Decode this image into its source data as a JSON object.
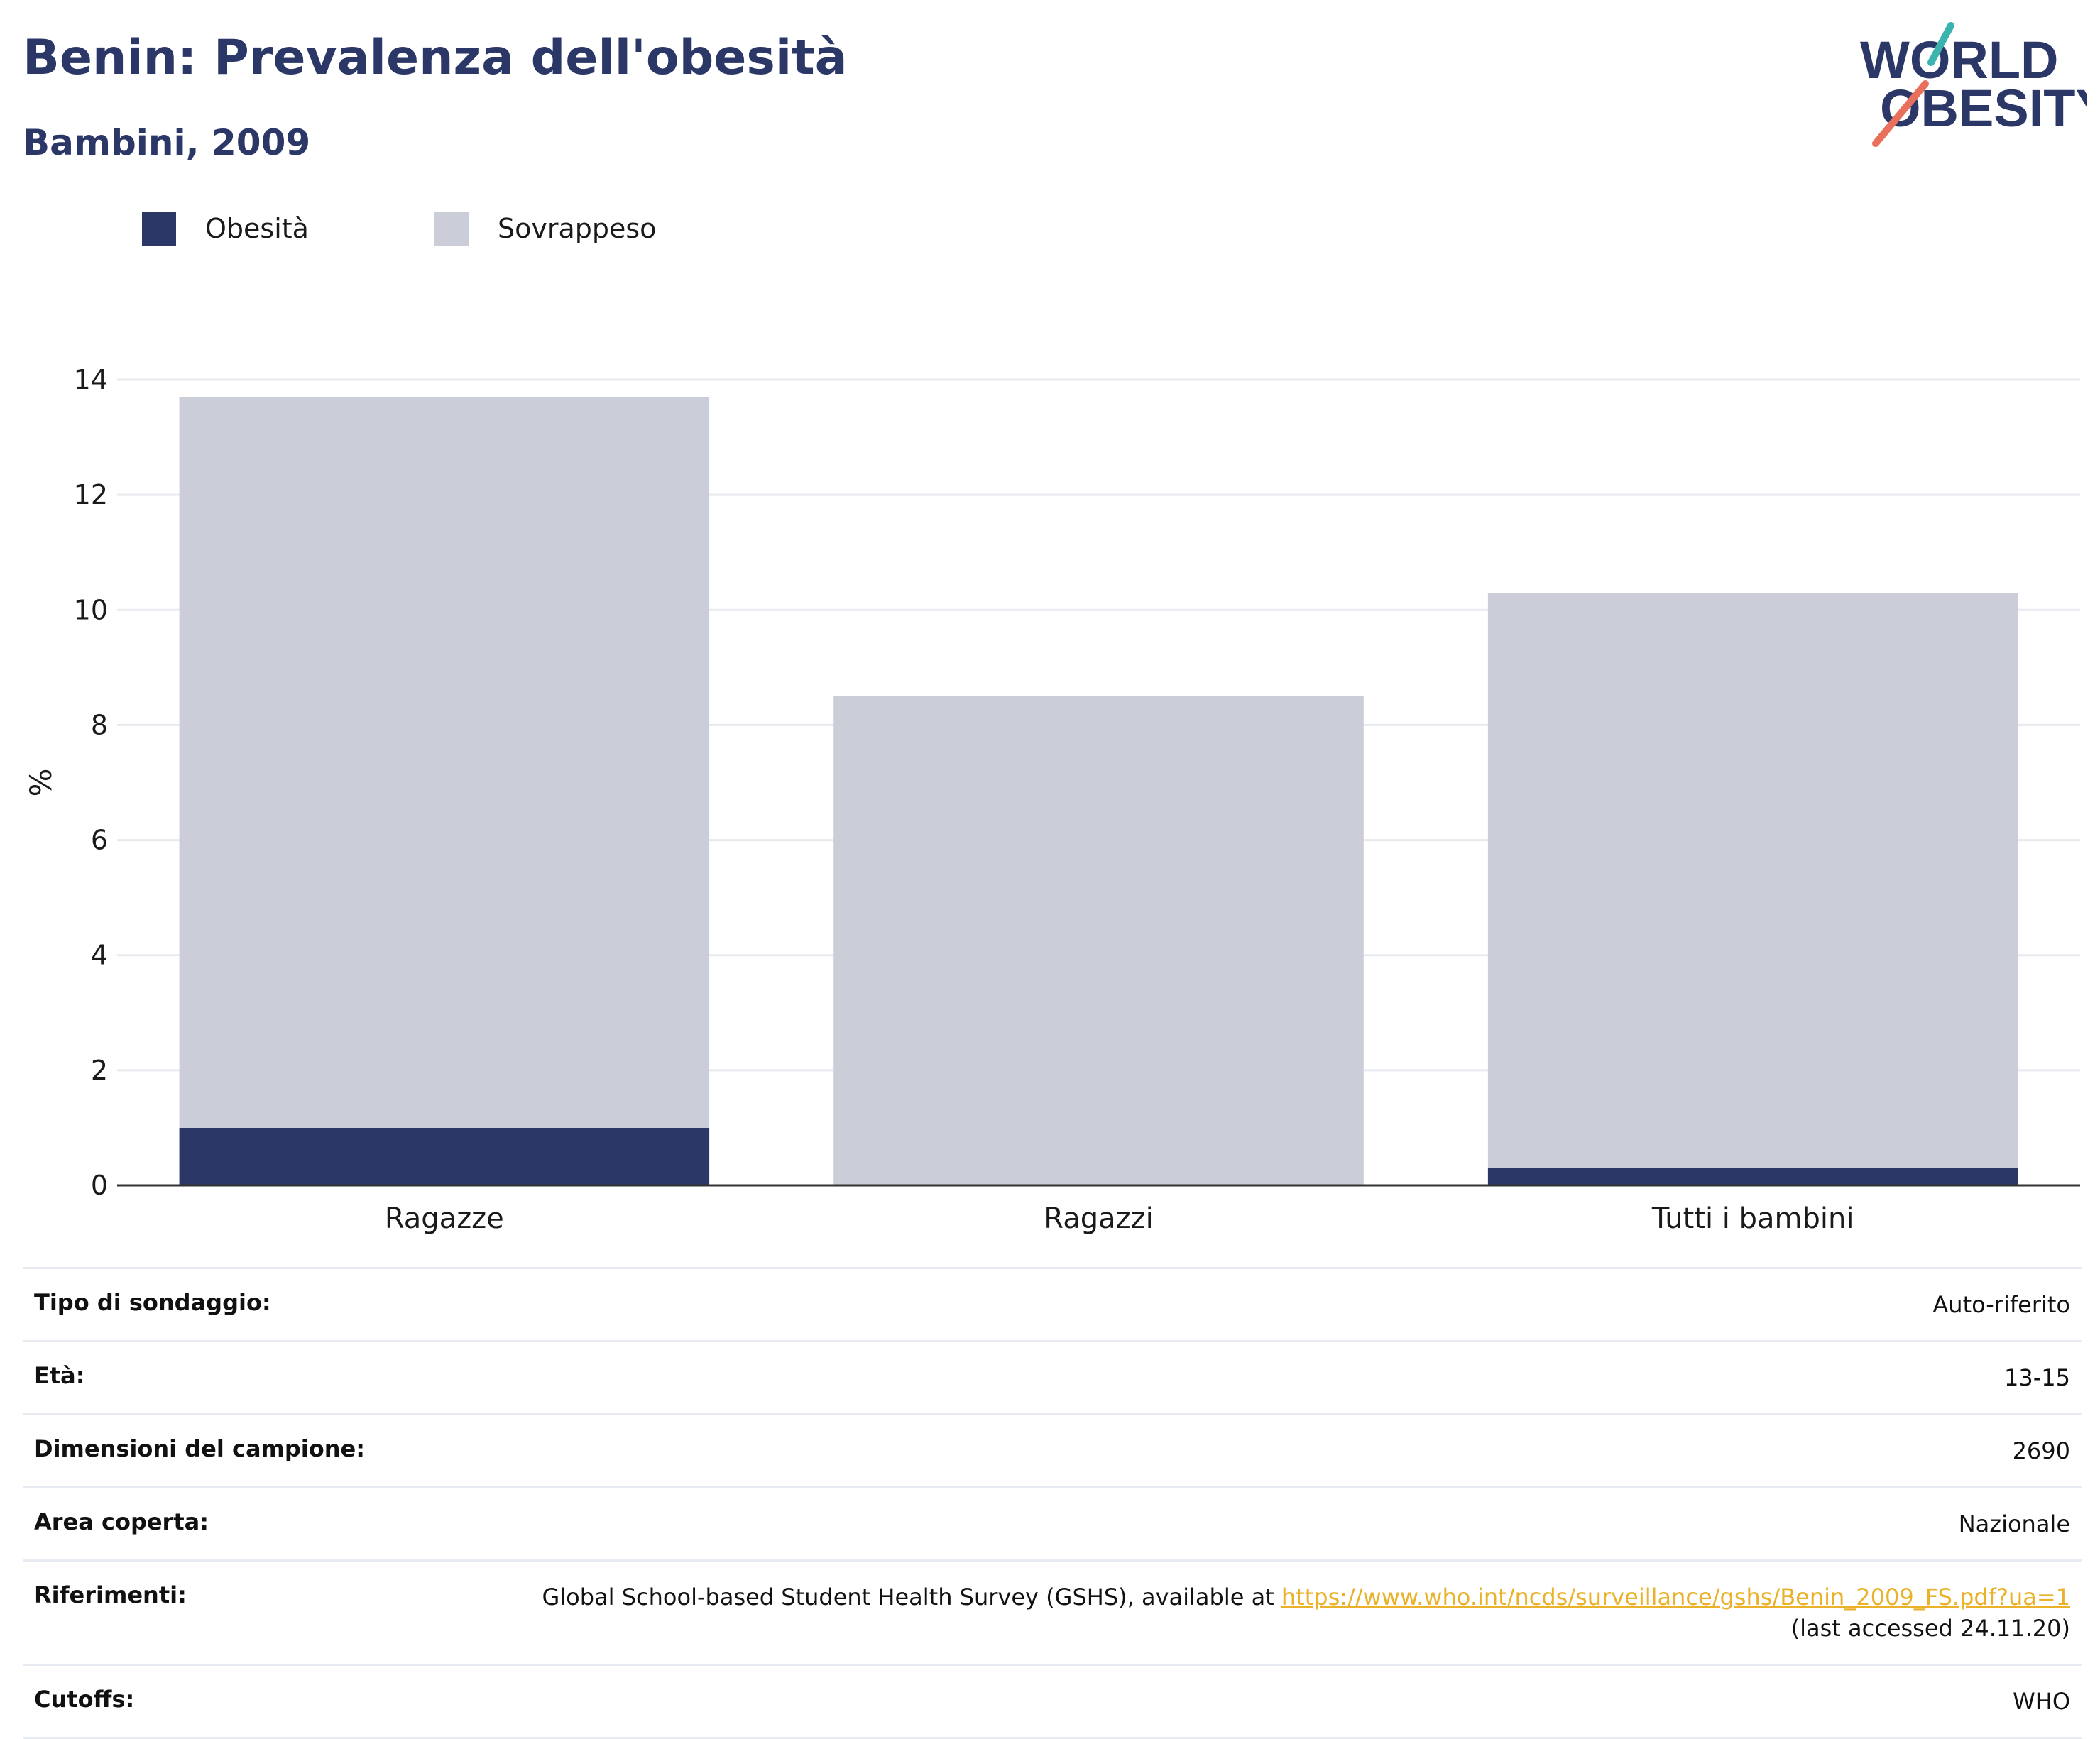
{
  "header": {
    "title": "Benin: Prevalenza dell'obesità",
    "subtitle": "Bambini, 2009"
  },
  "logo": {
    "line1": "WORLD",
    "line2": "OBESITY"
  },
  "colors": {
    "obesity": "#2b3766",
    "overweight": "#cbcdd8",
    "title": "#2b3766",
    "link": "#e9b22a",
    "logo_teal": "#3bb4b0",
    "logo_coral": "#e8705c"
  },
  "legend": [
    {
      "label": "Obesità",
      "color": "#2b3766"
    },
    {
      "label": "Sovrappeso",
      "color": "#cbcdd8"
    }
  ],
  "chart_data": {
    "type": "bar",
    "stacked": true,
    "categories": [
      "Ragazze",
      "Ragazzi",
      "Tutti i bambini"
    ],
    "series": [
      {
        "name": "Obesità",
        "values": [
          1.0,
          0.0,
          0.3
        ]
      },
      {
        "name": "Sovrappeso",
        "values": [
          12.7,
          8.5,
          10.0
        ]
      }
    ],
    "ylabel": "%",
    "ylim": [
      0,
      14
    ],
    "yticks": [
      0,
      2,
      4,
      6,
      8,
      10,
      12,
      14
    ],
    "grid": true,
    "legend_position": "top-left"
  },
  "info": {
    "survey_type": {
      "label": "Tipo di sondaggio:",
      "value": "Auto-riferito"
    },
    "age": {
      "label": "Età:",
      "value": "13-15"
    },
    "sample_size": {
      "label": "Dimensioni del campione:",
      "value": "2690"
    },
    "area": {
      "label": "Area coperta:",
      "value": "Nazionale"
    },
    "references": {
      "label": "Riferimenti:",
      "text_before": "Global School-based Student Health Survey (GSHS), available at ",
      "link": "https://www.who.int/ncds/surveillance/gshs/Benin_2009_FS.pdf?ua=1",
      "text_after": "(last accessed 24.11.20)"
    },
    "cutoffs": {
      "label": "Cutoffs:",
      "value": "WHO"
    }
  }
}
